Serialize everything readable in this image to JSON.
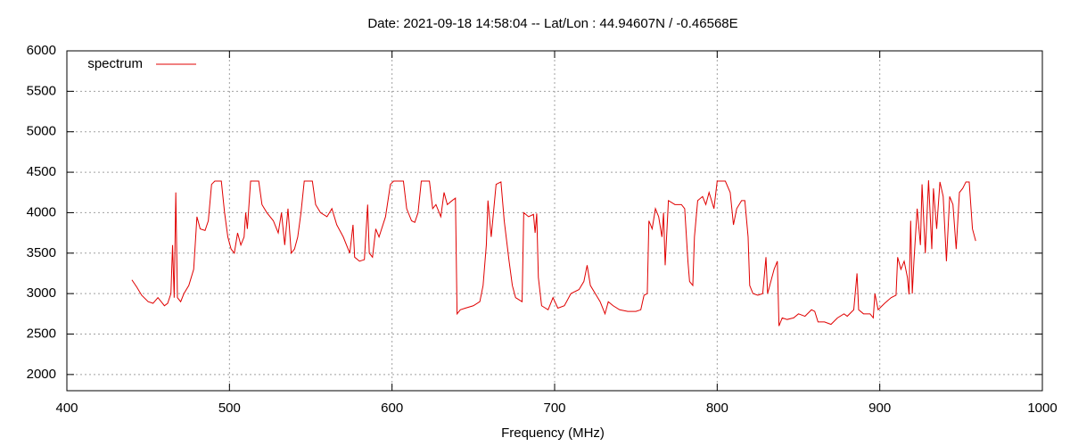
{
  "chart_data": {
    "type": "line",
    "title": "Date: 2021-09-18 14:58:04  --  Lat/Lon : 44.94607N / -0.46568E",
    "xlabel": "Frequency (MHz)",
    "x": [
      440,
      443,
      446,
      450,
      453,
      456,
      458,
      460,
      462,
      464,
      465,
      466,
      467,
      468,
      470,
      472,
      475,
      478,
      480,
      482,
      485,
      487,
      489,
      491,
      495,
      497,
      499,
      501,
      503,
      505,
      507,
      509,
      510,
      511,
      513,
      518,
      520,
      523,
      527,
      530,
      532,
      534,
      536,
      538,
      540,
      542,
      544,
      546,
      551,
      553,
      556,
      560,
      563,
      566,
      570,
      574,
      576,
      577,
      580,
      583,
      585,
      586,
      588,
      590,
      592,
      596,
      599,
      601,
      607,
      609,
      612,
      614,
      616,
      618,
      623,
      625,
      627,
      630,
      632,
      634,
      637,
      639,
      640,
      642,
      645,
      650,
      654,
      656,
      658,
      659,
      661,
      664,
      667,
      669,
      672,
      674,
      676,
      680,
      681,
      684,
      687,
      688,
      689,
      690,
      692,
      696,
      699,
      702,
      706,
      710,
      715,
      718,
      720,
      722,
      725,
      728,
      731,
      733,
      736,
      740,
      745,
      750,
      753,
      755,
      757,
      758,
      760,
      762,
      764,
      766,
      767,
      768,
      770,
      774,
      778,
      780,
      782,
      783,
      785,
      786,
      788,
      791,
      793,
      795,
      798,
      800,
      805,
      808,
      810,
      812,
      815,
      817,
      819,
      820,
      822,
      825,
      828,
      830,
      831,
      835,
      837,
      838,
      840,
      843,
      847,
      850,
      854,
      858,
      860,
      862,
      866,
      870,
      874,
      878,
      880,
      884,
      886,
      887,
      890,
      894,
      896,
      897,
      899,
      903,
      907,
      910,
      911,
      913,
      915,
      917,
      918,
      919,
      920,
      921,
      923,
      925,
      926,
      928,
      930,
      932,
      933,
      935,
      937,
      939,
      941,
      943,
      945,
      947,
      949,
      951,
      953,
      955,
      957,
      959
    ],
    "series": [
      {
        "name": "spectrum",
        "color": "#e00000",
        "values": [
          3170,
          3080,
          2980,
          2900,
          2880,
          2950,
          2900,
          2850,
          2880,
          3000,
          3600,
          2950,
          4250,
          2950,
          2900,
          3000,
          3100,
          3300,
          3950,
          3800,
          3780,
          3900,
          4350,
          4390,
          4390,
          4000,
          3700,
          3550,
          3500,
          3750,
          3600,
          3700,
          4000,
          3800,
          4390,
          4390,
          4100,
          4000,
          3900,
          3750,
          4000,
          3600,
          4050,
          3500,
          3550,
          3700,
          4000,
          4390,
          4390,
          4100,
          4000,
          3950,
          4050,
          3850,
          3700,
          3500,
          3850,
          3450,
          3400,
          3420,
          4100,
          3500,
          3450,
          3800,
          3700,
          3950,
          4350,
          4390,
          4390,
          4050,
          3900,
          3880,
          4000,
          4390,
          4390,
          4050,
          4100,
          3950,
          4250,
          4100,
          4150,
          4180,
          2750,
          2800,
          2820,
          2850,
          2900,
          3100,
          3600,
          4150,
          3700,
          4350,
          4380,
          3900,
          3400,
          3100,
          2950,
          2900,
          4000,
          3950,
          3980,
          3750,
          3990,
          3200,
          2850,
          2800,
          2950,
          2820,
          2850,
          3000,
          3050,
          3150,
          3350,
          3100,
          3000,
          2900,
          2750,
          2900,
          2850,
          2800,
          2780,
          2780,
          2800,
          2980,
          3000,
          3900,
          3800,
          4050,
          3950,
          3700,
          4000,
          3350,
          4150,
          4100,
          4100,
          4050,
          3400,
          3150,
          3100,
          3700,
          4150,
          4200,
          4100,
          4250,
          4050,
          4390,
          4390,
          4250,
          3850,
          4050,
          4150,
          4150,
          3700,
          3100,
          3000,
          2980,
          3000,
          3450,
          3000,
          3300,
          3400,
          2600,
          2700,
          2680,
          2700,
          2750,
          2720,
          2800,
          2780,
          2650,
          2650,
          2620,
          2700,
          2750,
          2720,
          2800,
          3250,
          2800,
          2750,
          2750,
          2700,
          3000,
          2800,
          2880,
          2950,
          2980,
          3450,
          3300,
          3400,
          3200,
          2990,
          3900,
          3000,
          3400,
          4050,
          3600,
          4350,
          3500,
          4400,
          3550,
          4300,
          3800,
          4380,
          4200,
          3400,
          4200,
          4100,
          3550,
          4250,
          4300,
          4380,
          4380,
          3800,
          3650
        ]
      }
    ],
    "xlim": [
      400,
      1000
    ],
    "xticks": [
      400,
      500,
      600,
      700,
      800,
      900,
      1000
    ],
    "ylim": [
      1800,
      6000
    ],
    "yticks": [
      2000,
      2500,
      3000,
      3500,
      4000,
      4500,
      5000,
      5500,
      6000
    ],
    "grid": true,
    "legend": "top-left"
  }
}
